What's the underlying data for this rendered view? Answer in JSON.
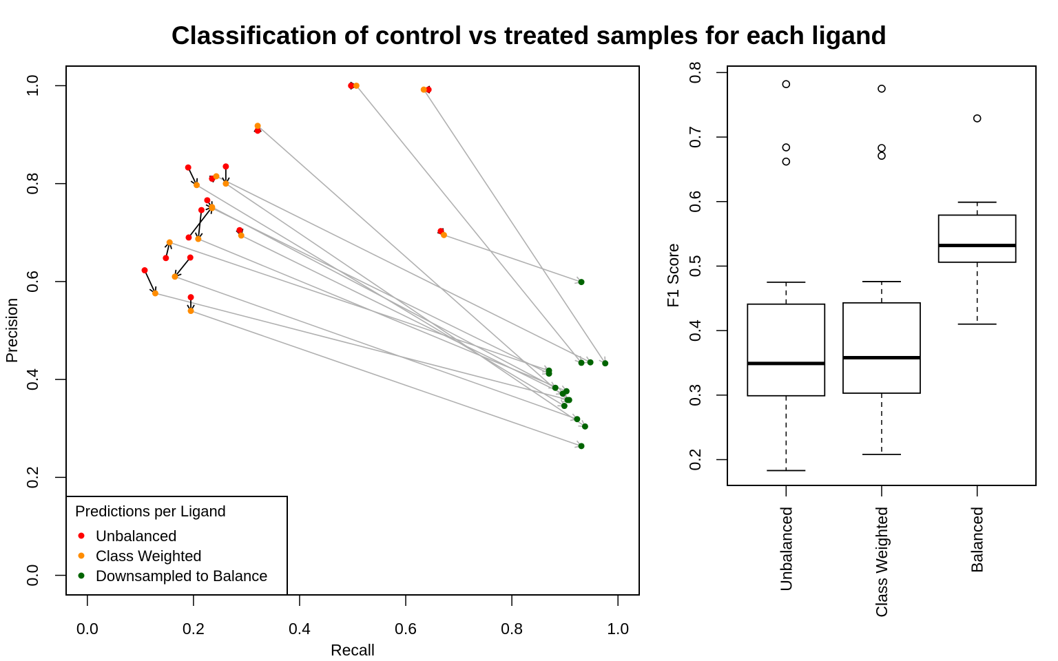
{
  "figure": {
    "title": "Classification of control vs treated samples for each ligand"
  },
  "chart_data": [
    {
      "type": "scatter",
      "xlabel": "Recall",
      "ylabel": "Precision",
      "xlim": [
        -0.04,
        1.04
      ],
      "ylim": [
        -0.04,
        1.04
      ],
      "xticks": [
        "0.0",
        "0.2",
        "0.4",
        "0.6",
        "0.8",
        "1.0"
      ],
      "yticks": [
        "0.0",
        "0.2",
        "0.4",
        "0.6",
        "0.8",
        "1.0"
      ],
      "colors": {
        "Unbalanced": "#ff0000",
        "Class Weighted": "#ff8c00",
        "Downsampled to Balance": "#006400",
        "arrow_unbalanced_to_weighted": "#000000",
        "arrow_weighted_to_balanced": "#b0b0b0"
      },
      "legend": {
        "title": "Predictions per Ligand",
        "position": "bottom-left",
        "entries": [
          {
            "label": "Unbalanced",
            "color": "#ff0000"
          },
          {
            "label": "Class Weighted",
            "color": "#ff8c00"
          },
          {
            "label": "Downsampled to Balance",
            "color": "#006400"
          }
        ]
      },
      "ligands": [
        {
          "unbalanced": [
            0.497,
            1.0
          ],
          "weighted": [
            0.507,
            1.0
          ],
          "balanced": [
            0.931,
            0.434
          ]
        },
        {
          "unbalanced": [
            0.643,
            0.992
          ],
          "weighted": [
            0.634,
            0.992
          ],
          "balanced": [
            0.976,
            0.433
          ]
        },
        {
          "unbalanced": [
            0.321,
            0.908
          ],
          "weighted": [
            0.321,
            0.918
          ],
          "balanced": [
            0.905,
            0.358
          ]
        },
        {
          "unbalanced": [
            0.19,
            0.833
          ],
          "weighted": [
            0.206,
            0.797
          ],
          "balanced": [
            0.899,
            0.346
          ]
        },
        {
          "unbalanced": [
            0.235,
            0.81
          ],
          "weighted": [
            0.243,
            0.815
          ],
          "balanced": [
            0.948,
            0.435
          ]
        },
        {
          "unbalanced": [
            0.261,
            0.835
          ],
          "weighted": [
            0.261,
            0.8
          ],
          "balanced": [
            0.938,
            0.304
          ]
        },
        {
          "unbalanced": [
            0.226,
            0.766
          ],
          "weighted": [
            0.235,
            0.75
          ],
          "balanced": [
            0.87,
            0.412
          ]
        },
        {
          "unbalanced": [
            0.215,
            0.746
          ],
          "weighted": [
            0.209,
            0.687
          ],
          "balanced": [
            0.903,
            0.376
          ]
        },
        {
          "unbalanced": [
            0.287,
            0.705
          ],
          "weighted": [
            0.29,
            0.694
          ],
          "balanced": [
            0.896,
            0.371
          ]
        },
        {
          "unbalanced": [
            0.666,
            0.703
          ],
          "weighted": [
            0.672,
            0.695
          ],
          "balanced": [
            0.931,
            0.599
          ]
        },
        {
          "unbalanced": [
            0.191,
            0.69
          ],
          "weighted": [
            0.235,
            0.752
          ],
          "balanced": [
            0.882,
            0.383
          ]
        },
        {
          "unbalanced": [
            0.148,
            0.648
          ],
          "weighted": [
            0.155,
            0.68
          ],
          "balanced": [
            0.87,
            0.418
          ]
        },
        {
          "unbalanced": [
            0.194,
            0.649
          ],
          "weighted": [
            0.165,
            0.61
          ],
          "balanced": [
            0.923,
            0.319
          ]
        },
        {
          "unbalanced": [
            0.108,
            0.623
          ],
          "weighted": [
            0.128,
            0.576
          ],
          "balanced": [
            0.908,
            0.358
          ]
        },
        {
          "unbalanced": [
            0.195,
            0.568
          ],
          "weighted": [
            0.195,
            0.54
          ],
          "balanced": [
            0.931,
            0.264
          ]
        }
      ]
    },
    {
      "type": "boxplot",
      "ylabel": "F1 Score",
      "ylim": [
        0.16,
        0.81
      ],
      "yticks": [
        "0.2",
        "0.3",
        "0.4",
        "0.5",
        "0.6",
        "0.7",
        "0.8"
      ],
      "categories": [
        "Unbalanced",
        "Class Weighted",
        "Balanced"
      ],
      "boxes": [
        {
          "whisker_low": 0.183,
          "q1": 0.299,
          "median": 0.349,
          "q3": 0.441,
          "whisker_high": 0.475,
          "outliers": [
            0.662,
            0.684,
            0.782
          ]
        },
        {
          "whisker_low": 0.208,
          "q1": 0.303,
          "median": 0.358,
          "q3": 0.443,
          "whisker_high": 0.476,
          "outliers": [
            0.671,
            0.683,
            0.775
          ]
        },
        {
          "whisker_low": 0.41,
          "q1": 0.506,
          "median": 0.532,
          "q3": 0.579,
          "whisker_high": 0.599,
          "outliers": [
            0.729
          ]
        }
      ]
    }
  ]
}
